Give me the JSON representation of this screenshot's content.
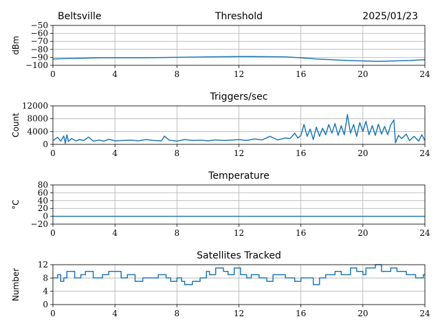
{
  "header": {
    "station": "Beltsville",
    "date": "2025/01/23"
  },
  "colors": {
    "series": "#1f77b4",
    "grid": "#b0b0b0"
  },
  "chart_data": [
    {
      "type": "line",
      "title": "Threshold",
      "ylabel": "dBm",
      "xlim": [
        0,
        24
      ],
      "ylim": [
        -100,
        -50
      ],
      "xticks": [
        0,
        4,
        8,
        12,
        16,
        20,
        24
      ],
      "yticks": [
        -100,
        -90,
        -80,
        -70,
        -60,
        -50
      ],
      "grid": true,
      "x": [
        0,
        1,
        2,
        3,
        4,
        6,
        8,
        10,
        12,
        13,
        14,
        15,
        16,
        17,
        18,
        19,
        20,
        21,
        22,
        23,
        24
      ],
      "y": [
        -92,
        -91.5,
        -91,
        -90.5,
        -90.5,
        -90.5,
        -90,
        -89.5,
        -89,
        -89,
        -89.2,
        -89.5,
        -90.5,
        -92,
        -93,
        -94,
        -94.5,
        -95,
        -94.5,
        -94,
        -93
      ]
    },
    {
      "type": "line",
      "title": "Triggers/sec",
      "ylabel": "Count",
      "xlim": [
        0,
        24
      ],
      "ylim": [
        0,
        12000
      ],
      "xticks": [
        0,
        4,
        8,
        12,
        16,
        20,
        24
      ],
      "yticks": [
        0,
        4000,
        8000,
        12000
      ],
      "grid": true,
      "x": [
        0,
        0.3,
        0.5,
        0.7,
        0.8,
        0.9,
        1.0,
        1.2,
        1.5,
        1.7,
        2.0,
        2.3,
        2.6,
        3.0,
        3.3,
        3.6,
        4.0,
        4.5,
        5.0,
        5.5,
        6.0,
        6.5,
        7.0,
        7.2,
        7.5,
        8.0,
        8.5,
        9.0,
        9.5,
        10.0,
        10.5,
        11.0,
        11.5,
        12.0,
        12.5,
        13.0,
        13.5,
        14.0,
        14.5,
        15.0,
        15.3,
        15.6,
        15.8,
        16.0,
        16.2,
        16.4,
        16.6,
        16.8,
        17.0,
        17.2,
        17.4,
        17.6,
        17.8,
        18.0,
        18.2,
        18.4,
        18.6,
        18.8,
        19.0,
        19.2,
        19.4,
        19.6,
        19.8,
        20.0,
        20.2,
        20.4,
        20.6,
        20.8,
        21.0,
        21.2,
        21.4,
        21.6,
        21.8,
        22.0,
        22.1,
        22.3,
        22.5,
        22.8,
        23.0,
        23.3,
        23.6,
        23.8,
        24.0
      ],
      "y": [
        1200,
        2200,
        1000,
        2600,
        300,
        3000,
        900,
        1800,
        1100,
        1500,
        1200,
        2300,
        1000,
        1300,
        1000,
        1600,
        1100,
        1200,
        1300,
        1100,
        1500,
        1200,
        1100,
        2600,
        1300,
        1000,
        1500,
        1200,
        1300,
        1100,
        1400,
        1200,
        1300,
        1500,
        1200,
        1700,
        1400,
        2500,
        1400,
        2000,
        1800,
        3500,
        2000,
        2800,
        6200,
        2500,
        4800,
        1500,
        5400,
        2500,
        5000,
        3000,
        6200,
        3500,
        6500,
        2800,
        5800,
        3000,
        9300,
        3500,
        6200,
        2500,
        6800,
        4000,
        7200,
        3000,
        5800,
        2800,
        6300,
        3200,
        5600,
        3000,
        6100,
        7600,
        500,
        2800,
        1800,
        3200,
        1200,
        2500,
        1000,
        3000,
        1200
      ]
    },
    {
      "type": "line",
      "title": "Temperature",
      "ylabel": "°C",
      "xlim": [
        0,
        24
      ],
      "ylim": [
        -20,
        80
      ],
      "xticks": [
        0,
        4,
        8,
        12,
        16,
        20,
        24
      ],
      "yticks": [
        -20,
        0,
        20,
        40,
        60,
        80
      ],
      "grid": true,
      "x": [
        0,
        24
      ],
      "y": [
        0,
        0
      ]
    },
    {
      "type": "line",
      "title": "Satellites Tracked",
      "ylabel": "Number",
      "xlim": [
        0,
        24
      ],
      "ylim": [
        0,
        12
      ],
      "xticks": [
        0,
        4,
        8,
        12,
        16,
        20,
        24
      ],
      "yticks": [
        0,
        4,
        8,
        12
      ],
      "grid": true,
      "step": true,
      "x": [
        0,
        0.3,
        0.5,
        0.7,
        0.9,
        1.4,
        1.8,
        2.1,
        2.6,
        3.2,
        3.6,
        4.4,
        4.8,
        5.3,
        5.8,
        6.8,
        7.3,
        7.6,
        8.0,
        8.3,
        8.5,
        9.0,
        9.5,
        9.9,
        10.1,
        10.5,
        11.0,
        11.3,
        11.7,
        12.1,
        12.5,
        12.8,
        13.3,
        13.8,
        14.2,
        15.0,
        15.6,
        16.0,
        16.8,
        17.2,
        17.6,
        18.2,
        18.6,
        19.2,
        19.6,
        20.0,
        20.2,
        20.8,
        21.2,
        21.8,
        22.2,
        22.8,
        23.4,
        23.9,
        24.0
      ],
      "y": [
        8,
        9,
        7,
        8,
        10,
        8,
        9,
        10,
        8,
        9,
        10,
        8,
        9,
        7,
        8,
        9,
        8,
        7,
        8,
        7,
        6,
        7,
        8,
        10,
        9,
        11,
        10,
        9,
        11,
        9,
        8,
        9,
        8,
        7,
        9,
        8,
        7,
        8,
        6,
        8,
        9,
        10,
        9,
        11,
        10,
        9,
        11,
        12,
        10,
        11,
        10,
        9,
        8,
        9,
        9
      ]
    }
  ]
}
